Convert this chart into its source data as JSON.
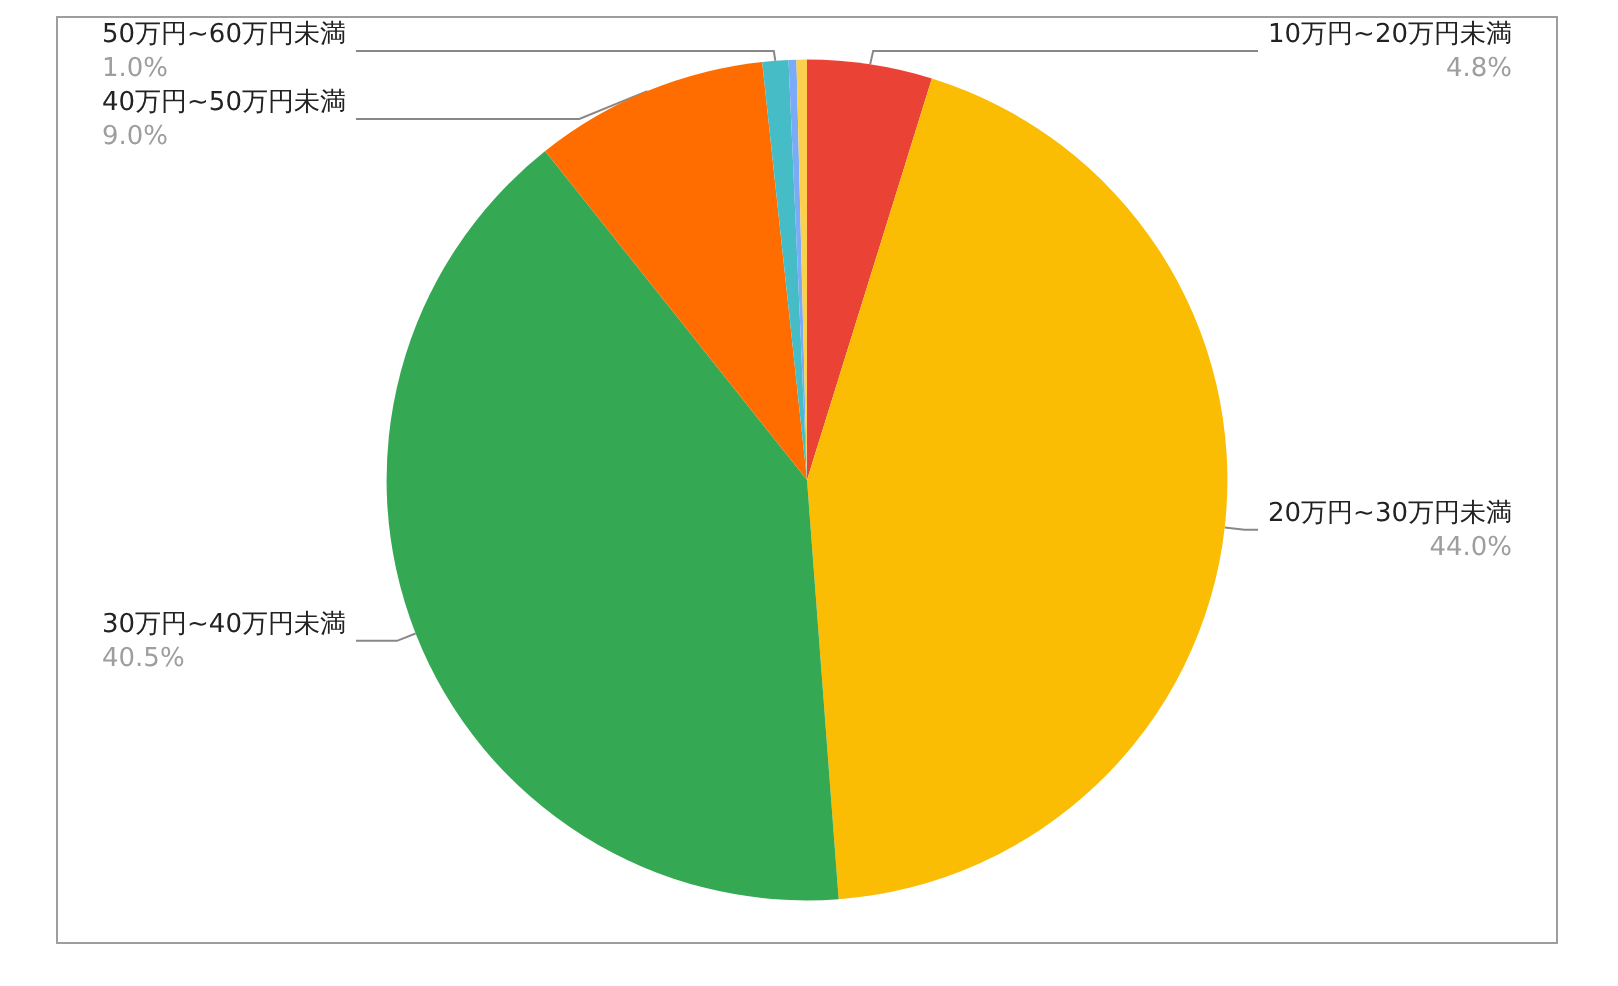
{
  "chart_data": {
    "type": "pie",
    "categories": [
      "10万円~20万円未満",
      "20万円~30万円未満",
      "30万円~40万円未満",
      "40万円~50万円未満",
      "50万円~60万円未満",
      null,
      null
    ],
    "values": [
      4.8,
      44.0,
      40.5,
      9.0,
      1.0,
      0.3,
      0.4
    ],
    "value_labels": [
      "4.8%",
      "44.0%",
      "40.5%",
      "9.0%",
      "1.0%",
      null,
      null
    ],
    "colors": [
      "#ea4335",
      "#fbbc04",
      "#34a853",
      "#ff6d01",
      "#46bdc6",
      "#7baaf7",
      "#fcd04f"
    ],
    "legend": false
  }
}
